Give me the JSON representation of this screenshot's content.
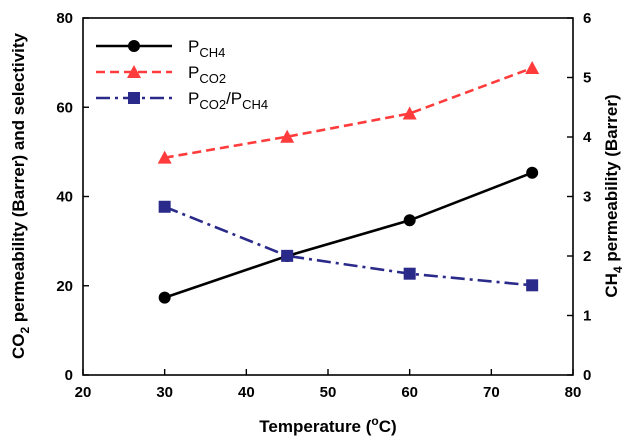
{
  "chart_data": {
    "type": "line",
    "x": [
      30,
      45,
      60,
      75
    ],
    "xlabel": {
      "main": "Temperature (",
      "sup": "o",
      "unit": "C",
      "close": ")"
    },
    "ylabel_left": {
      "pre": "CO",
      "sub": "2",
      "post": " permeability (Barrer) and selectivity"
    },
    "ylabel_right": {
      "pre": "CH",
      "sub": "4",
      "post": " permeability (Barrer)"
    },
    "xlim": [
      20,
      80
    ],
    "ylim_left": [
      0,
      80
    ],
    "ylim_right": [
      0,
      6
    ],
    "xticks": [
      20,
      30,
      40,
      50,
      60,
      70,
      80
    ],
    "yticks_left": [
      0,
      20,
      40,
      60,
      80
    ],
    "yticks_right": [
      0,
      1,
      2,
      3,
      4,
      5,
      6
    ],
    "grid": false,
    "legend_position": "top-left",
    "series": [
      {
        "name": {
          "base": "P",
          "sub": "CH4"
        },
        "axis": "right",
        "values": [
          1.3,
          2.0,
          2.6,
          3.4
        ],
        "color": "#000000",
        "marker": "circle",
        "dash": "solid"
      },
      {
        "name": {
          "base": "P",
          "sub": "CO2"
        },
        "axis": "left",
        "values": [
          48.7,
          53.4,
          58.6,
          68.8
        ],
        "color": "#ff3b3b",
        "marker": "triangle",
        "dash": "dashed"
      },
      {
        "name": {
          "base": "P",
          "sub": "CO2",
          "mid": "/P",
          "sub2": "CH4"
        },
        "axis": "left",
        "values": [
          37.7,
          26.7,
          22.7,
          20.1
        ],
        "color": "#2a2a8a",
        "marker": "square",
        "dash": "dashdot"
      }
    ]
  }
}
